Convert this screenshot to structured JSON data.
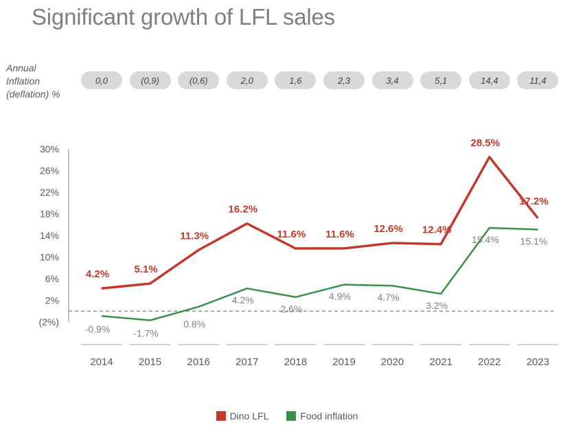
{
  "title": "Significant growth of LFL sales",
  "inflation_label_lines": [
    "Annual",
    "Inflation",
    "(deflation) %"
  ],
  "annual_inflation": [
    "0,0",
    "(0,9)",
    "(0,6)",
    "2,0",
    "1,6",
    "2,3",
    "3,4",
    "5,1",
    "14,4",
    "11,4"
  ],
  "colors": {
    "dino": "#c0392b",
    "food": "#3a8f4a",
    "axis_text": "#595959",
    "pill_bg": "#d9d9d9"
  },
  "chart_data": {
    "type": "line",
    "title": "Significant growth of LFL sales",
    "xlabel": "",
    "ylabel": "",
    "categories": [
      "2014",
      "2015",
      "2016",
      "2017",
      "2018",
      "2019",
      "2020",
      "2021",
      "2022",
      "2023"
    ],
    "y_ticks": [
      {
        "value": 30,
        "label": "30%"
      },
      {
        "value": 26,
        "label": "26%"
      },
      {
        "value": 22,
        "label": "22%"
      },
      {
        "value": 18,
        "label": "18%"
      },
      {
        "value": 14,
        "label": "14%"
      },
      {
        "value": 10,
        "label": "10%"
      },
      {
        "value": 6,
        "label": "6%"
      },
      {
        "value": 2,
        "label": "2%"
      },
      {
        "value": -2,
        "label": "(2%)"
      }
    ],
    "ylim": [
      -2,
      30
    ],
    "reference_line": 0,
    "grid": false,
    "legend_position": "bottom",
    "series": [
      {
        "name": "Dino LFL",
        "color": "#c0392b",
        "values": [
          4.2,
          5.1,
          11.3,
          16.2,
          11.6,
          11.6,
          12.6,
          12.4,
          28.5,
          17.2
        ],
        "labels": [
          "4.2%",
          "5.1%",
          "11.3%",
          "16.2%",
          "11.6%",
          "11.6%",
          "12.6%",
          "12.4%",
          "28.5%",
          "17.2%"
        ]
      },
      {
        "name": "Food inflation",
        "color": "#3a8f4a",
        "values": [
          -0.9,
          -1.7,
          0.8,
          4.2,
          2.6,
          4.9,
          4.7,
          3.2,
          15.4,
          15.1
        ],
        "labels": [
          "-0.9%",
          "-1.7%",
          "0.8%",
          "4.2%",
          "2.6%",
          "4.9%",
          "4.7%",
          "3.2%",
          "15.4%",
          "15.1%"
        ]
      }
    ]
  }
}
